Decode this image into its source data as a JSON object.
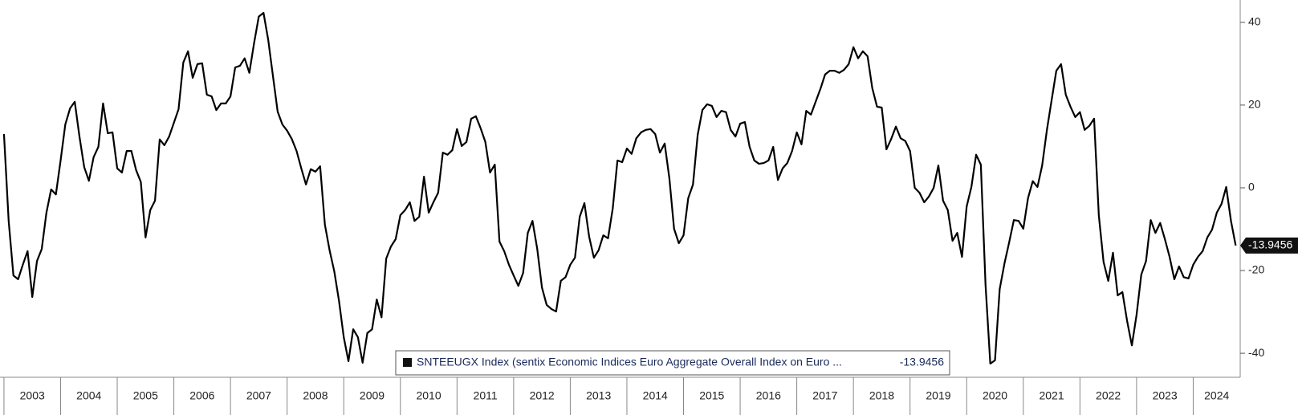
{
  "chart_data": {
    "type": "line",
    "series": [
      {
        "name": "SNTEEUGX Index (sentix Economic Indices Euro Aggregate  Overall Index on Euro ...",
        "color": "#000000",
        "values": [
          13.0,
          -8,
          -21.2,
          -22.1,
          -18.6,
          -15.3,
          -26.4,
          -17.7,
          -14.8,
          -6,
          -0.4,
          -1.6,
          6.6,
          15.3,
          19.2,
          20.8,
          12.4,
          5,
          1.7,
          7.4,
          9.9,
          20.4,
          13.2,
          13.4,
          4.7,
          3.7,
          8.9,
          8.9,
          4.3,
          1.4,
          -12,
          -5.4,
          -3.1,
          11.7,
          10.3,
          12.4,
          15.7,
          19,
          30.3,
          33,
          26.6,
          29.9,
          30.1,
          22.5,
          22.1,
          18.8,
          20.4,
          20.4,
          22.1,
          29.1,
          29.5,
          31.3,
          27.8,
          35,
          41.4,
          42.3,
          35.7,
          27,
          18.4,
          15.3,
          13.8,
          11.8,
          8.9,
          4.7,
          0.8,
          4.5,
          3.9,
          5.2,
          -8.9,
          -15.1,
          -20.2,
          -27.4,
          -36.1,
          -41.9,
          -34.2,
          -36.1,
          -42.3,
          -35.1,
          -34.2,
          -27,
          -31.3,
          -17.1,
          -14.2,
          -12.4,
          -6.6,
          -5.4,
          -3.5,
          -8,
          -7,
          2.7,
          -6,
          -3.5,
          -1.2,
          8.5,
          8,
          9.1,
          14.2,
          10.1,
          11.1,
          16.7,
          17.3,
          14.4,
          11.1,
          3.7,
          5.6,
          -13,
          -15.3,
          -18.6,
          -21.2,
          -23.7,
          -20.6,
          -10.9,
          -8,
          -14.8,
          -24.1,
          -28.3,
          -29.3,
          -29.9,
          -22.5,
          -21.6,
          -18.6,
          -16.9,
          -7,
          -3.7,
          -11.8,
          -16.9,
          -15.1,
          -11.5,
          -12.2,
          -5,
          6.6,
          6.2,
          9.5,
          8.2,
          12,
          13.4,
          14,
          14.2,
          13,
          8.5,
          10.7,
          2.3,
          -9.9,
          -13.4,
          -11.5,
          -2.5,
          0.8,
          12.8,
          18.8,
          20.2,
          19.8,
          17.1,
          18.6,
          18.3,
          14,
          12.4,
          15.5,
          15.9,
          9.9,
          6.6,
          5.8,
          6,
          6.6,
          9.9,
          1.9,
          4.7,
          6,
          8.9,
          13.4,
          10.5,
          18.6,
          17.7,
          20.8,
          23.9,
          27.4,
          28.3,
          28.3,
          27.8,
          28.5,
          29.9,
          34,
          31.3,
          33,
          31.8,
          24.1,
          19.6,
          19.4,
          9.3,
          11.8,
          14.8,
          12,
          11.3,
          8.9,
          0,
          -1.2,
          -3.5,
          -2.1,
          0,
          5.4,
          -3.1,
          -5.4,
          -12.8,
          -10.9,
          -16.7,
          -4.5,
          0.2,
          8,
          5.6,
          -23.5,
          -42.5,
          -41.7,
          -24.5,
          -18.3,
          -13.2,
          -7.8,
          -8,
          -9.9,
          -2.5,
          1.6,
          0.2,
          5.4,
          14,
          21.2,
          28.3,
          29.9,
          22.5,
          19.6,
          17.1,
          18.3,
          14,
          15,
          16.7,
          -6.6,
          -17.9,
          -22.5,
          -15.7,
          -26,
          -25.2,
          -32.2,
          -38.1,
          -30.7,
          -21,
          -17.7,
          -7.8,
          -10.9,
          -8.5,
          -12.4,
          -16.7,
          -22.1,
          -19,
          -21.6,
          -21.9,
          -18.6,
          -16.7,
          -15.3,
          -12,
          -10.1,
          -6,
          -3.9,
          0.2,
          -8,
          -13.9456
        ]
      }
    ],
    "x": [
      2003,
      2003.083,
      2003.167,
      2003.25,
      2003.333,
      2003.417,
      2003.5,
      2003.583,
      2003.667,
      2003.75,
      2003.833,
      2003.917,
      2004,
      2004.083,
      2004.167,
      2004.25,
      2004.333,
      2004.417,
      2004.5,
      2004.583,
      2004.667,
      2004.75,
      2004.833,
      2004.917,
      2005,
      2005.083,
      2005.167,
      2005.25,
      2005.333,
      2005.417,
      2005.5,
      2005.583,
      2005.667,
      2005.75,
      2005.833,
      2005.917,
      2006,
      2006.083,
      2006.167,
      2006.25,
      2006.333,
      2006.417,
      2006.5,
      2006.583,
      2006.667,
      2006.75,
      2006.833,
      2006.917,
      2007,
      2007.083,
      2007.167,
      2007.25,
      2007.333,
      2007.417,
      2007.5,
      2007.583,
      2007.667,
      2007.75,
      2007.833,
      2007.917,
      2008,
      2008.083,
      2008.167,
      2008.25,
      2008.333,
      2008.417,
      2008.5,
      2008.583,
      2008.667,
      2008.75,
      2008.833,
      2008.917,
      2009,
      2009.083,
      2009.167,
      2009.25,
      2009.333,
      2009.417,
      2009.5,
      2009.583,
      2009.667,
      2009.75,
      2009.833,
      2009.917,
      2010,
      2010.083,
      2010.167,
      2010.25,
      2010.333,
      2010.417,
      2010.5,
      2010.583,
      2010.667,
      2010.75,
      2010.833,
      2010.917,
      2011,
      2011.083,
      2011.167,
      2011.25,
      2011.333,
      2011.417,
      2011.5,
      2011.583,
      2011.667,
      2011.75,
      2011.833,
      2011.917,
      2012,
      2012.083,
      2012.167,
      2012.25,
      2012.333,
      2012.417,
      2012.5,
      2012.583,
      2012.667,
      2012.75,
      2012.833,
      2012.917,
      2013,
      2013.083,
      2013.167,
      2013.25,
      2013.333,
      2013.417,
      2013.5,
      2013.583,
      2013.667,
      2013.75,
      2013.833,
      2013.917,
      2014,
      2014.083,
      2014.167,
      2014.25,
      2014.333,
      2014.417,
      2014.5,
      2014.583,
      2014.667,
      2014.75,
      2014.833,
      2014.917,
      2015,
      2015.083,
      2015.167,
      2015.25,
      2015.333,
      2015.417,
      2015.5,
      2015.583,
      2015.667,
      2015.75,
      2015.833,
      2015.917,
      2016,
      2016.083,
      2016.167,
      2016.25,
      2016.333,
      2016.417,
      2016.5,
      2016.583,
      2016.667,
      2016.75,
      2016.833,
      2016.917,
      2017,
      2017.083,
      2017.167,
      2017.25,
      2017.333,
      2017.417,
      2017.5,
      2017.583,
      2017.667,
      2017.75,
      2017.833,
      2017.917,
      2018,
      2018.083,
      2018.167,
      2018.25,
      2018.333,
      2018.417,
      2018.5,
      2018.583,
      2018.667,
      2018.75,
      2018.833,
      2018.917,
      2019,
      2019.083,
      2019.167,
      2019.25,
      2019.333,
      2019.417,
      2019.5,
      2019.583,
      2019.667,
      2019.75,
      2019.833,
      2019.917,
      2020,
      2020.083,
      2020.167,
      2020.25,
      2020.333,
      2020.417,
      2020.5,
      2020.583,
      2020.667,
      2020.75,
      2020.833,
      2020.917,
      2021,
      2021.083,
      2021.167,
      2021.25,
      2021.333,
      2021.417,
      2021.5,
      2021.583,
      2021.667,
      2021.75,
      2021.833,
      2021.917,
      2022,
      2022.083,
      2022.167,
      2022.25,
      2022.333,
      2022.417,
      2022.5,
      2022.583,
      2022.667,
      2022.75,
      2022.833,
      2022.917,
      2023,
      2023.083,
      2023.167,
      2023.25,
      2023.333,
      2023.417,
      2023.5,
      2023.583,
      2023.667,
      2023.75,
      2023.833,
      2023.917,
      2024,
      2024.083,
      2024.167,
      2024.25,
      2024.333,
      2024.417,
      2024.5,
      2024.583,
      2024.667,
      2024.75
    ],
    "xlim": [
      2002.93,
      2024.83
    ],
    "xticks": [
      2003,
      2004,
      2005,
      2006,
      2007,
      2008,
      2009,
      2010,
      2011,
      2012,
      2013,
      2014,
      2015,
      2016,
      2017,
      2018,
      2019,
      2020,
      2021,
      2022,
      2023,
      2024
    ],
    "ylim": [
      -45.8,
      45.4
    ],
    "yticks": [
      -40,
      -20,
      0,
      20,
      40
    ],
    "legend": "bottom"
  }
}
